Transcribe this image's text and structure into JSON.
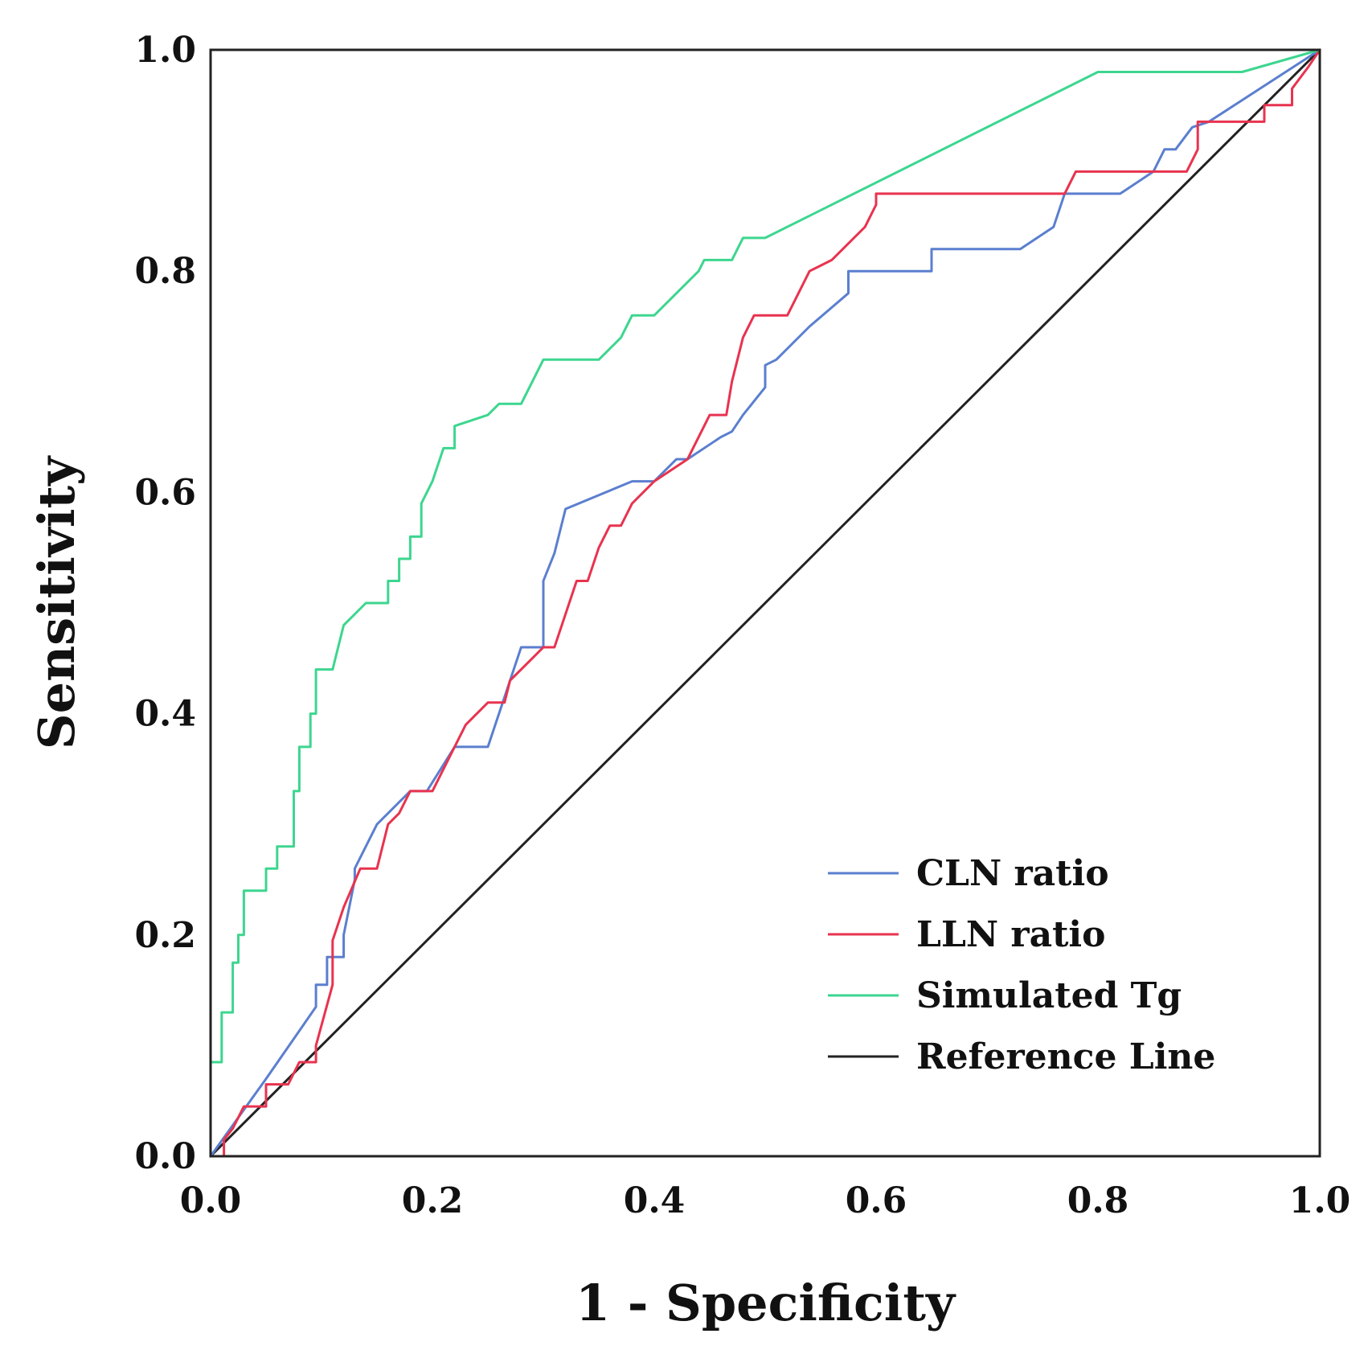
{
  "chart_data": {
    "type": "line",
    "title": "",
    "xlabel": "1 - Specificity",
    "ylabel": "Sensitivity",
    "xlim": [
      0,
      1
    ],
    "ylim": [
      0,
      1
    ],
    "x_ticks": [
      "0.0",
      "0.2",
      "0.4",
      "0.6",
      "0.8",
      "1.0"
    ],
    "y_ticks": [
      "0.0",
      "0.2",
      "0.4",
      "0.6",
      "0.8",
      "1.0"
    ],
    "grid": false,
    "legend_position": "bottom-right",
    "series": [
      {
        "name": "CLN ratio",
        "color": "#5b7fcf",
        "x": [
          0,
          0.05,
          0.095,
          0.095,
          0.105,
          0.105,
          0.12,
          0.12,
          0.13,
          0.13,
          0.15,
          0.16,
          0.18,
          0.195,
          0.22,
          0.25,
          0.27,
          0.28,
          0.3,
          0.3,
          0.31,
          0.32,
          0.38,
          0.4,
          0.42,
          0.43,
          0.46,
          0.47,
          0.48,
          0.5,
          0.5,
          0.51,
          0.54,
          0.575,
          0.575,
          0.65,
          0.65,
          0.73,
          0.76,
          0.77,
          0.78,
          0.82,
          0.85,
          0.86,
          0.87,
          0.885,
          0.9,
          1.0
        ],
        "y": [
          0,
          0.07,
          0.135,
          0.155,
          0.155,
          0.18,
          0.18,
          0.2,
          0.25,
          0.26,
          0.3,
          0.31,
          0.33,
          0.33,
          0.37,
          0.37,
          0.43,
          0.46,
          0.46,
          0.52,
          0.545,
          0.585,
          0.61,
          0.61,
          0.63,
          0.63,
          0.65,
          0.655,
          0.67,
          0.695,
          0.715,
          0.72,
          0.75,
          0.78,
          0.8,
          0.8,
          0.82,
          0.82,
          0.84,
          0.87,
          0.87,
          0.87,
          0.89,
          0.91,
          0.91,
          0.93,
          0.935,
          1.0
        ]
      },
      {
        "name": "LLN ratio",
        "color": "#e8334f",
        "x": [
          0,
          0.012,
          0.012,
          0.02,
          0.03,
          0.05,
          0.05,
          0.07,
          0.08,
          0.095,
          0.095,
          0.11,
          0.11,
          0.12,
          0.135,
          0.15,
          0.16,
          0.17,
          0.18,
          0.2,
          0.22,
          0.23,
          0.25,
          0.265,
          0.27,
          0.29,
          0.3,
          0.31,
          0.33,
          0.34,
          0.35,
          0.36,
          0.37,
          0.38,
          0.4,
          0.43,
          0.44,
          0.45,
          0.465,
          0.47,
          0.48,
          0.49,
          0.52,
          0.54,
          0.56,
          0.58,
          0.59,
          0.6,
          0.6,
          0.77,
          0.78,
          0.88,
          0.89,
          0.89,
          0.95,
          0.95,
          0.975,
          0.975,
          0.99,
          1.0
        ],
        "y": [
          0,
          0,
          0.015,
          0.025,
          0.045,
          0.045,
          0.065,
          0.065,
          0.085,
          0.085,
          0.1,
          0.155,
          0.195,
          0.225,
          0.26,
          0.26,
          0.3,
          0.31,
          0.33,
          0.33,
          0.37,
          0.39,
          0.41,
          0.41,
          0.43,
          0.45,
          0.46,
          0.46,
          0.52,
          0.52,
          0.55,
          0.57,
          0.57,
          0.59,
          0.61,
          0.63,
          0.65,
          0.67,
          0.67,
          0.7,
          0.74,
          0.76,
          0.76,
          0.8,
          0.81,
          0.83,
          0.84,
          0.86,
          0.87,
          0.87,
          0.89,
          0.89,
          0.91,
          0.935,
          0.935,
          0.95,
          0.95,
          0.965,
          0.985,
          1.0
        ]
      },
      {
        "name": "Simulated Tg",
        "color": "#3dd68f",
        "x": [
          0,
          0,
          0.01,
          0.01,
          0.02,
          0.02,
          0.025,
          0.025,
          0.03,
          0.03,
          0.05,
          0.05,
          0.06,
          0.06,
          0.075,
          0.075,
          0.08,
          0.08,
          0.09,
          0.09,
          0.095,
          0.095,
          0.11,
          0.12,
          0.13,
          0.14,
          0.16,
          0.16,
          0.17,
          0.17,
          0.18,
          0.18,
          0.19,
          0.19,
          0.2,
          0.21,
          0.22,
          0.22,
          0.25,
          0.26,
          0.28,
          0.3,
          0.35,
          0.37,
          0.38,
          0.4,
          0.44,
          0.445,
          0.47,
          0.48,
          0.5,
          0.8,
          0.93,
          1.0
        ],
        "y": [
          0,
          0.085,
          0.085,
          0.13,
          0.13,
          0.175,
          0.175,
          0.2,
          0.2,
          0.24,
          0.24,
          0.26,
          0.26,
          0.28,
          0.28,
          0.33,
          0.33,
          0.37,
          0.37,
          0.4,
          0.4,
          0.44,
          0.44,
          0.48,
          0.49,
          0.5,
          0.5,
          0.52,
          0.52,
          0.54,
          0.54,
          0.56,
          0.56,
          0.59,
          0.61,
          0.64,
          0.64,
          0.66,
          0.67,
          0.68,
          0.68,
          0.72,
          0.72,
          0.74,
          0.76,
          0.76,
          0.8,
          0.81,
          0.81,
          0.83,
          0.83,
          0.98,
          0.98,
          1.0
        ]
      },
      {
        "name": "Reference Line",
        "color": "#222222",
        "x": [
          0,
          1
        ],
        "y": [
          0,
          1
        ]
      }
    ]
  }
}
